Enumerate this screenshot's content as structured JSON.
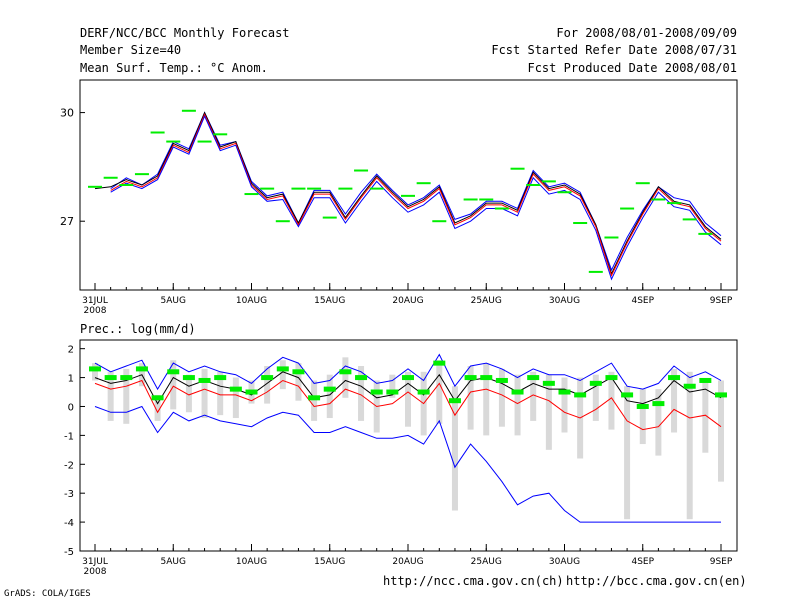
{
  "header": {
    "title": "DERF/NCC/BCC Monthly Forecast",
    "member_size": "Member Size=40",
    "variable": "Mean Surf. Temp.: °C Anom.",
    "period": "For 2008/08/01-2008/09/09",
    "fcst_started": "Fcst Started Refer Date 2008/07/31",
    "fcst_produced": "Fcst Produced Date 2008/08/01"
  },
  "footer": {
    "grads_credit": "GrADS: COLA/IGES",
    "url_ncc": "http://ncc.cma.gov.cn(ch)",
    "url_bcc": "http://bcc.cma.gov.cn(en)"
  },
  "colors": {
    "max_line": "#0000ff",
    "min_line": "#ff0000",
    "mean_line": "#000000",
    "obs_marker": "#00ee00",
    "spread_bar": "#d9d9d9"
  },
  "chart_data": [
    {
      "type": "line",
      "title": "Mean Surf. Temp.: °C Anom.",
      "xlabel": "",
      "ylabel": "",
      "x_days": [
        0,
        1,
        2,
        3,
        4,
        5,
        6,
        7,
        8,
        9,
        10,
        11,
        12,
        13,
        14,
        15,
        16,
        17,
        18,
        19,
        20,
        21,
        22,
        23,
        24,
        25,
        26,
        27,
        28,
        29,
        30,
        31,
        32,
        33,
        34,
        35,
        36,
        37,
        38,
        39,
        40
      ],
      "xticks": [
        {
          "day": 0,
          "label": "31JUL",
          "sub": "2008"
        },
        {
          "day": 5,
          "label": "5AUG"
        },
        {
          "day": 10,
          "label": "10AUG"
        },
        {
          "day": 15,
          "label": "15AUG"
        },
        {
          "day": 20,
          "label": "20AUG"
        },
        {
          "day": 25,
          "label": "25AUG"
        },
        {
          "day": 30,
          "label": "30AUG"
        },
        {
          "day": 35,
          "label": "4SEP"
        },
        {
          "day": 40,
          "label": "9SEP"
        }
      ],
      "yticks": [
        27,
        30
      ],
      "ylim": [
        25.1,
        30.9
      ],
      "series": [
        {
          "name": "max",
          "color": "#0000ff",
          "values": [
            null,
            27.9,
            28.2,
            28.0,
            28.3,
            29.2,
            29.0,
            30.0,
            29.1,
            29.2,
            28.1,
            27.7,
            27.8,
            26.95,
            27.85,
            27.85,
            27.2,
            27.8,
            28.3,
            27.85,
            27.45,
            27.65,
            28.0,
            27.05,
            27.2,
            27.55,
            27.55,
            27.35,
            28.4,
            27.95,
            28.05,
            27.8,
            26.9,
            25.65,
            26.55,
            27.3,
            27.95,
            27.65,
            27.55,
            26.95,
            26.6
          ]
        },
        {
          "name": "mean",
          "color": "#000000",
          "values": [
            27.9,
            27.95,
            28.15,
            28.0,
            28.25,
            29.15,
            28.95,
            30.0,
            29.05,
            29.2,
            28.05,
            27.65,
            27.75,
            26.95,
            27.8,
            27.8,
            27.1,
            27.7,
            28.25,
            27.8,
            27.4,
            27.6,
            27.95,
            26.95,
            27.15,
            27.5,
            27.5,
            27.3,
            28.35,
            27.9,
            28.0,
            27.75,
            26.9,
            25.55,
            26.45,
            27.25,
            27.95,
            27.55,
            27.45,
            26.85,
            26.5
          ]
        },
        {
          "name": "min",
          "color": "#ff0000",
          "values": [
            null,
            27.85,
            28.1,
            27.95,
            28.2,
            29.1,
            28.9,
            29.95,
            29.0,
            29.15,
            28.0,
            27.6,
            27.7,
            26.9,
            27.75,
            27.75,
            27.05,
            27.65,
            28.2,
            27.75,
            27.35,
            27.55,
            27.9,
            26.9,
            27.1,
            27.45,
            27.45,
            27.25,
            28.3,
            27.85,
            27.95,
            27.7,
            26.85,
            25.5,
            26.4,
            27.2,
            27.9,
            27.5,
            27.4,
            26.8,
            26.45
          ]
        },
        {
          "name": "ensemble-low",
          "color": "#0000ff",
          "values": [
            null,
            27.8,
            28.05,
            27.9,
            28.15,
            29.05,
            28.85,
            29.9,
            28.95,
            29.1,
            27.95,
            27.55,
            27.6,
            26.85,
            27.65,
            27.65,
            26.95,
            27.55,
            28.1,
            27.65,
            27.25,
            27.45,
            27.8,
            26.8,
            27.0,
            27.35,
            27.35,
            27.15,
            28.2,
            27.75,
            27.85,
            27.6,
            26.75,
            25.4,
            26.3,
            27.1,
            27.8,
            27.4,
            27.3,
            26.7,
            26.35
          ]
        }
      ],
      "observed_markers": [
        27.95,
        28.2,
        28.0,
        28.3,
        29.45,
        29.2,
        30.05,
        29.2,
        29.4,
        null,
        27.75,
        27.9,
        27.0,
        27.9,
        27.9,
        27.1,
        27.9,
        28.4,
        27.9,
        null,
        27.7,
        28.05,
        27.0,
        null,
        27.6,
        27.6,
        27.35,
        28.45,
        28.0,
        28.1,
        27.8,
        26.95,
        25.6,
        26.55,
        27.35,
        28.05,
        27.6,
        27.5,
        27.05,
        26.65,
        null
      ]
    },
    {
      "type": "line",
      "title": "Prec.: log(mm/d)",
      "xlabel": "",
      "ylabel": "",
      "x_days": [
        0,
        1,
        2,
        3,
        4,
        5,
        6,
        7,
        8,
        9,
        10,
        11,
        12,
        13,
        14,
        15,
        16,
        17,
        18,
        19,
        20,
        21,
        22,
        23,
        24,
        25,
        26,
        27,
        28,
        29,
        30,
        31,
        32,
        33,
        34,
        35,
        36,
        37,
        38,
        39,
        40
      ],
      "xticks": [
        {
          "day": 0,
          "label": "31JUL",
          "sub": "2008"
        },
        {
          "day": 5,
          "label": "5AUG"
        },
        {
          "day": 10,
          "label": "10AUG"
        },
        {
          "day": 15,
          "label": "15AUG"
        },
        {
          "day": 20,
          "label": "20AUG"
        },
        {
          "day": 25,
          "label": "25AUG"
        },
        {
          "day": 30,
          "label": "30AUG"
        },
        {
          "day": 35,
          "label": "4SEP"
        },
        {
          "day": 40,
          "label": "9SEP"
        }
      ],
      "yticks": [
        -5,
        -4,
        -3,
        -2,
        -1,
        0,
        1,
        2
      ],
      "ylim": [
        -5,
        2.3
      ],
      "series": [
        {
          "name": "max",
          "color": "#0000ff",
          "values": [
            1.5,
            1.2,
            1.4,
            1.6,
            0.6,
            1.5,
            1.2,
            1.4,
            1.2,
            1.1,
            0.8,
            1.3,
            1.7,
            1.5,
            0.8,
            0.9,
            1.4,
            1.2,
            0.8,
            0.9,
            1.3,
            0.9,
            1.8,
            0.7,
            1.4,
            1.5,
            1.3,
            1.0,
            1.3,
            1.1,
            1.1,
            0.9,
            1.2,
            1.5,
            0.7,
            0.6,
            0.8,
            1.4,
            1.0,
            1.2,
            0.9
          ]
        },
        {
          "name": "mean",
          "color": "#000000",
          "values": [
            1.0,
            0.8,
            0.9,
            1.1,
            0.1,
            1.0,
            0.7,
            0.9,
            0.7,
            0.6,
            0.4,
            0.8,
            1.2,
            1.0,
            0.3,
            0.4,
            0.9,
            0.7,
            0.3,
            0.4,
            0.8,
            0.4,
            1.1,
            0.2,
            0.9,
            1.0,
            0.8,
            0.5,
            0.8,
            0.6,
            0.6,
            0.4,
            0.7,
            1.0,
            0.2,
            0.1,
            0.3,
            0.9,
            0.5,
            0.6,
            0.3
          ]
        },
        {
          "name": "min",
          "color": "#ff0000",
          "values": [
            0.8,
            0.6,
            0.7,
            0.9,
            -0.2,
            0.7,
            0.4,
            0.6,
            0.4,
            0.4,
            0.2,
            0.5,
            0.9,
            0.7,
            0.0,
            0.1,
            0.6,
            0.4,
            0.0,
            0.1,
            0.5,
            0.1,
            0.8,
            -0.3,
            0.5,
            0.6,
            0.4,
            0.1,
            0.4,
            0.2,
            -0.2,
            -0.4,
            -0.1,
            0.3,
            -0.5,
            -0.8,
            -0.7,
            -0.1,
            -0.4,
            -0.3,
            -0.7
          ]
        },
        {
          "name": "ensemble-low",
          "color": "#0000ff",
          "values": [
            0.0,
            -0.2,
            -0.2,
            0.0,
            -0.9,
            -0.2,
            -0.5,
            -0.3,
            -0.5,
            -0.6,
            -0.7,
            -0.4,
            -0.2,
            -0.3,
            -0.9,
            -0.9,
            -0.7,
            -0.9,
            -1.1,
            -1.1,
            -1.0,
            -1.3,
            -0.5,
            -2.1,
            -1.3,
            -1.9,
            -2.6,
            -3.4,
            -3.1,
            -3.0,
            -3.6,
            -4.0,
            -4.0,
            -4.0,
            -4.0,
            -4.0,
            -4.0,
            -4.0,
            -4.0,
            -4.0,
            -4.0
          ]
        }
      ],
      "spread_bars": [
        [
          0.9,
          1.5
        ],
        [
          -0.5,
          1.2
        ],
        [
          -0.6,
          1.3
        ],
        [
          0.7,
          1.5
        ],
        [
          -0.5,
          0.4
        ],
        [
          -0.1,
          1.6
        ],
        [
          -0.2,
          1.1
        ],
        [
          -0.4,
          1.3
        ],
        [
          -0.3,
          1.2
        ],
        [
          -0.4,
          1.0
        ],
        [
          0.1,
          0.9
        ],
        [
          0.1,
          1.4
        ],
        [
          0.6,
          1.6
        ],
        [
          0.2,
          1.5
        ],
        [
          -0.5,
          0.9
        ],
        [
          -0.4,
          1.1
        ],
        [
          0.3,
          1.7
        ],
        [
          -0.5,
          1.4
        ],
        [
          -0.9,
          0.9
        ],
        [
          0.3,
          1.1
        ],
        [
          -0.7,
          1.2
        ],
        [
          -1.0,
          1.2
        ],
        [
          -0.6,
          1.6
        ],
        [
          -3.6,
          0.7
        ],
        [
          -0.8,
          1.4
        ],
        [
          -1.0,
          1.5
        ],
        [
          -0.7,
          1.3
        ],
        [
          -1.0,
          1.1
        ],
        [
          -0.5,
          1.2
        ],
        [
          -1.5,
          1.1
        ],
        [
          -0.9,
          1.0
        ],
        [
          -1.8,
          1.0
        ],
        [
          -0.5,
          1.1
        ],
        [
          -0.8,
          1.2
        ],
        [
          -3.9,
          0.7
        ],
        [
          -1.3,
          0.6
        ],
        [
          -1.7,
          0.6
        ],
        [
          -0.9,
          1.3
        ],
        [
          -3.9,
          1.2
        ],
        [
          -1.6,
          0.9
        ],
        [
          -2.6,
          0.9
        ]
      ],
      "observed_markers": [
        1.3,
        1.0,
        1.0,
        1.3,
        0.3,
        1.2,
        1.0,
        0.9,
        1.0,
        0.6,
        0.5,
        1.0,
        1.3,
        1.2,
        0.3,
        0.6,
        1.2,
        1.0,
        0.5,
        0.5,
        1.0,
        0.5,
        1.5,
        0.2,
        1.0,
        1.0,
        0.9,
        0.5,
        1.0,
        0.8,
        0.5,
        0.4,
        0.8,
        1.0,
        0.4,
        0.0,
        0.1,
        1.0,
        0.7,
        0.9,
        0.4
      ]
    }
  ]
}
